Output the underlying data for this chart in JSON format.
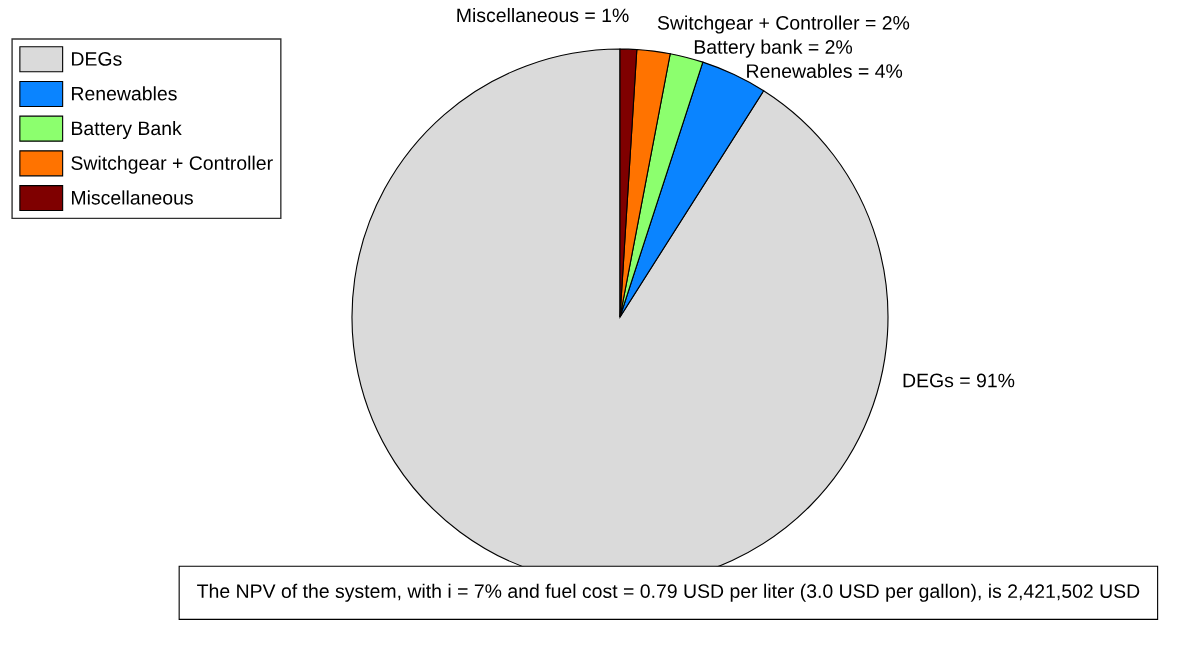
{
  "chart_data": {
    "type": "pie",
    "categories": [
      "DEGs",
      "Renewables",
      "Battery Bank",
      "Switchgear + Controller",
      "Miscellaneous"
    ],
    "values": [
      91,
      4,
      2,
      2,
      1
    ],
    "colors": [
      "#dadada",
      "#0a84ff",
      "#8cff6e",
      "#ff7300",
      "#7f0000"
    ],
    "value_labels": [
      "DEGs = 91%",
      "Renewables = 4%",
      "Battery bank = 2%",
      "Switchgear + Controller = 2%",
      "Miscellaneous = 1%"
    ],
    "legend": "top left",
    "annotations": [
      "The NPV of the system, with i = 7% and fuel cost = 0.79 USD per liter (3.0 USD per gallon), is 2,421,502 USD"
    ]
  }
}
